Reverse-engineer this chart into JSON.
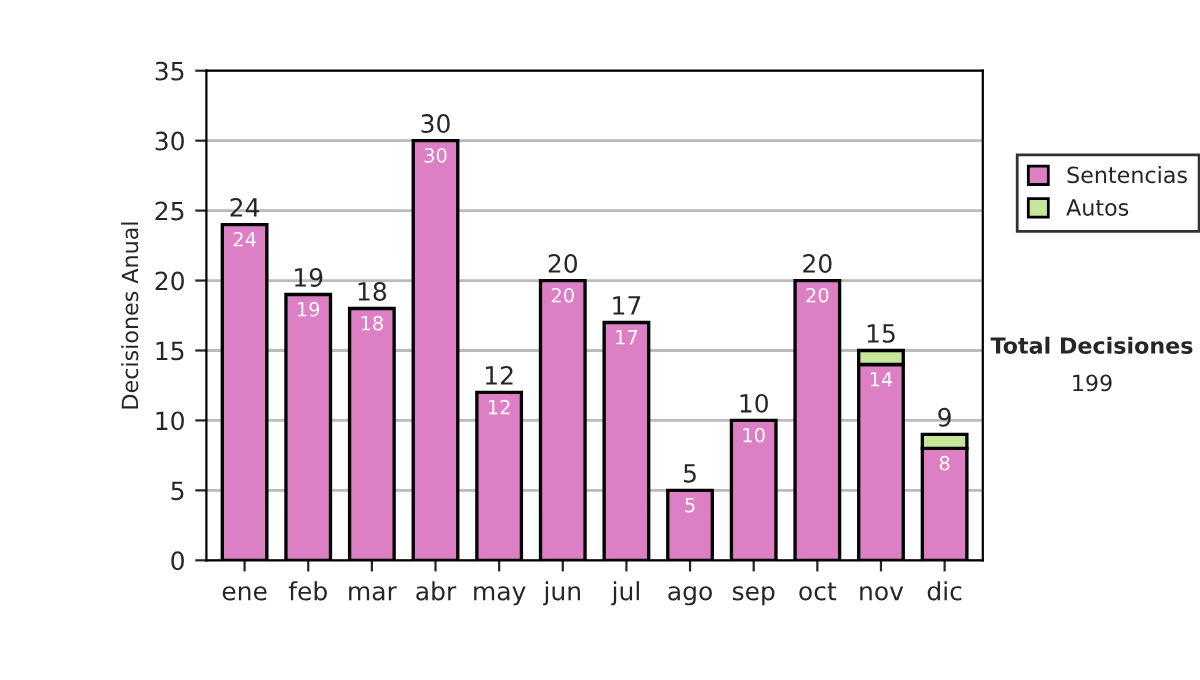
{
  "chart_data": {
    "type": "bar",
    "stacked": true,
    "ylabel": "Decisiones Anual",
    "categories": [
      "ene",
      "feb",
      "mar",
      "abr",
      "may",
      "jun",
      "jul",
      "ago",
      "sep",
      "oct",
      "nov",
      "dic"
    ],
    "series": [
      {
        "name": "Sentencias",
        "color": "#dd7fc4",
        "values": [
          24,
          19,
          18,
          30,
          12,
          20,
          17,
          5,
          10,
          20,
          14,
          8
        ],
        "value_labels": [
          "24",
          "19",
          "18",
          "30",
          "12",
          "20",
          "17",
          "5",
          "10",
          "20",
          "14",
          "8"
        ]
      },
      {
        "name": "Autos",
        "color": "#c8e69a",
        "values": [
          null,
          null,
          null,
          null,
          null,
          null,
          null,
          null,
          null,
          null,
          1,
          1
        ]
      }
    ],
    "totals": [
      "24",
      "19",
      "18",
      "30",
      "12",
      "20",
      "17",
      "5",
      "10",
      "20",
      "15",
      "9"
    ],
    "ylim": [
      0,
      35
    ],
    "yticks": [
      0,
      5,
      10,
      15,
      20,
      25,
      30,
      35
    ],
    "grid": "y",
    "legend": "right",
    "annotations": [
      "Total Decisiones",
      "199"
    ]
  }
}
